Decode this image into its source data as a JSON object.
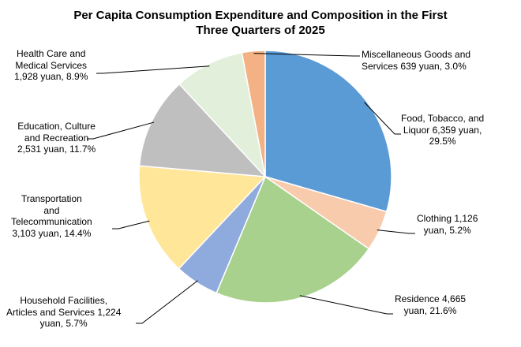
{
  "chart_data": {
    "type": "pie",
    "title_lines": [
      "Per Capita Consumption Expenditure and Composition in the First",
      "Three Quarters of 2025"
    ],
    "unit": "yuan",
    "start_direction": "12 o'clock, clockwise",
    "slices": [
      {
        "name": "Food, Tobacco, and Liquor",
        "value": 6359,
        "percent": 29.5,
        "color": "#5B9BD5",
        "label_lines": [
          "Food, Tobacco, and",
          "Liquor 6,359 yuan,",
          "29.5%"
        ]
      },
      {
        "name": "Clothing",
        "value": 1126,
        "percent": 5.2,
        "color": "#F8CBAD",
        "label_lines": [
          "Clothing 1,126",
          "yuan, 5.2%"
        ]
      },
      {
        "name": "Residence",
        "value": 4665,
        "percent": 21.6,
        "color": "#A9D18E",
        "label_lines": [
          "Residence 4,665",
          "yuan, 21.6%"
        ]
      },
      {
        "name": "Household Facilities, Articles and Services",
        "value": 1224,
        "percent": 5.7,
        "color": "#8FAADC",
        "label_lines": [
          "Household Facilities,",
          "Articles and Services 1,224",
          "yuan, 5.7%"
        ]
      },
      {
        "name": "Transportation and Telecommunication",
        "value": 3103,
        "percent": 14.4,
        "color": "#FFE699",
        "label_lines": [
          "Transportation",
          "and",
          "Telecommunication",
          "3,103 yuan, 14.4%"
        ]
      },
      {
        "name": "Education, Culture and Recreation",
        "value": 2531,
        "percent": 11.7,
        "color": "#BFBFBF",
        "label_lines": [
          "Education, Culture",
          "and Recreation",
          "2,531 yuan, 11.7%"
        ]
      },
      {
        "name": "Health Care and Medical Services",
        "value": 1928,
        "percent": 8.9,
        "color": "#E2EFDA",
        "label_lines": [
          "Health Care and",
          "Medical Services",
          "1,928 yuan, 8.9%"
        ]
      },
      {
        "name": "Miscellaneous Goods and Services",
        "value": 639,
        "percent": 3.0,
        "color": "#F4B183",
        "label_lines": [
          "Miscellaneous Goods and",
          "Services 639 yuan, 3.0%"
        ]
      }
    ]
  }
}
